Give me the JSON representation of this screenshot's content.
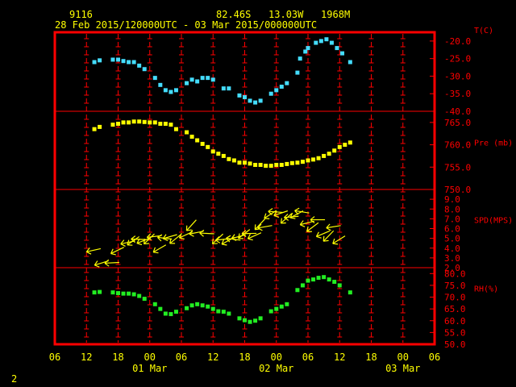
{
  "header": {
    "station": "9116",
    "location": "82.46S   13.03W   1968M",
    "period": "28 Feb 2015/120000UTC - 03 Mar 2015/000000UTC"
  },
  "footer": {
    "page": "2"
  },
  "colors": {
    "background": "#000000",
    "frame": "#ff0000",
    "text": "#ffff00",
    "temperature": "#44ddff",
    "pressure": "#ffff00",
    "wind": "#ffff00",
    "humidity": "#22ee22"
  },
  "chart_data": {
    "type": "scatter",
    "x_axis": {
      "ticks": [
        "06",
        "12",
        "18",
        "00",
        "06",
        "12",
        "18",
        "00",
        "06",
        "12",
        "18",
        "00",
        "06"
      ],
      "date_labels": [
        {
          "at": "00",
          "text": "01 Mar"
        },
        {
          "at": "00",
          "text": "02 Mar"
        },
        {
          "at": "00",
          "text": "03 Mar"
        }
      ],
      "unit": "hours since 28 Feb 2015 06 UTC",
      "range": [
        0,
        72
      ]
    },
    "panels": [
      {
        "name": "temperature",
        "label": "T(C)",
        "ylim": [
          -40,
          -17.5
        ],
        "yticks": [
          "-20.0",
          "-25.0",
          "-30.0",
          "-35.0",
          "-40.0"
        ],
        "series": [
          [
            7.5,
            -26
          ],
          [
            8.5,
            -25.5
          ],
          [
            11,
            -25.3
          ],
          [
            12,
            -25.3
          ],
          [
            13,
            -25.7
          ],
          [
            14,
            -26
          ],
          [
            15,
            -26
          ],
          [
            16,
            -27
          ],
          [
            17,
            -28
          ],
          [
            19,
            -30.5
          ],
          [
            20,
            -32.5
          ],
          [
            21,
            -34
          ],
          [
            22,
            -34.5
          ],
          [
            23,
            -34
          ],
          [
            25,
            -32
          ],
          [
            26,
            -31
          ],
          [
            27,
            -31.5
          ],
          [
            28,
            -30.5
          ],
          [
            29,
            -30.5
          ],
          [
            30,
            -31
          ],
          [
            32,
            -33.5
          ],
          [
            33,
            -33.5
          ],
          [
            35,
            -35.5
          ],
          [
            36,
            -36
          ],
          [
            37,
            -37
          ],
          [
            38,
            -37.5
          ],
          [
            39,
            -37
          ],
          [
            41,
            -35
          ],
          [
            42,
            -34
          ],
          [
            43,
            -33
          ],
          [
            44,
            -32
          ],
          [
            46,
            -29
          ],
          [
            46.5,
            -25
          ],
          [
            47.5,
            -23
          ],
          [
            48,
            -22
          ],
          [
            49.5,
            -20.5
          ],
          [
            50.5,
            -20
          ],
          [
            51.5,
            -19.5
          ],
          [
            52.5,
            -20.5
          ],
          [
            53.5,
            -22
          ],
          [
            54.5,
            -23.5
          ],
          [
            56,
            -26
          ]
        ]
      },
      {
        "name": "pressure",
        "label": "Pre (mb)",
        "ylim": [
          750,
          767.5
        ],
        "yticks": [
          "765.0",
          "760.0",
          "755.0",
          "750.0"
        ],
        "series": [
          [
            7.5,
            763.5
          ],
          [
            8.5,
            764
          ],
          [
            11,
            764.5
          ],
          [
            12,
            764.7
          ],
          [
            13,
            765
          ],
          [
            14,
            765
          ],
          [
            15,
            765.2
          ],
          [
            16,
            765.2
          ],
          [
            17,
            765.1
          ],
          [
            18,
            765
          ],
          [
            19,
            765
          ],
          [
            20,
            764.7
          ],
          [
            21,
            764.7
          ],
          [
            22,
            764.5
          ],
          [
            23,
            763.5
          ],
          [
            25,
            762.8
          ],
          [
            26,
            761.8
          ],
          [
            27,
            761
          ],
          [
            28,
            760.2
          ],
          [
            29,
            759.5
          ],
          [
            30,
            758.5
          ],
          [
            31,
            758
          ],
          [
            32,
            757.5
          ],
          [
            33,
            756.8
          ],
          [
            34,
            756.5
          ],
          [
            35,
            756
          ],
          [
            36,
            756
          ],
          [
            37,
            755.8
          ],
          [
            38,
            755.5
          ],
          [
            39,
            755.5
          ],
          [
            40,
            755.3
          ],
          [
            41,
            755.3
          ],
          [
            42,
            755.5
          ],
          [
            43,
            755.5
          ],
          [
            44,
            755.7
          ],
          [
            45,
            755.9
          ],
          [
            46,
            756
          ],
          [
            47,
            756.2
          ],
          [
            48,
            756.5
          ],
          [
            49,
            756.7
          ],
          [
            50,
            757
          ],
          [
            51,
            757.5
          ],
          [
            52,
            758
          ],
          [
            53,
            758.7
          ],
          [
            54,
            759.5
          ],
          [
            55,
            760
          ],
          [
            56,
            760.5
          ]
        ]
      },
      {
        "name": "wind",
        "label": "SPD(MPS)",
        "ylim": [
          2,
          10
        ],
        "yticks": [
          "9.0",
          "8.0",
          "7.0",
          "6.0",
          "5.0",
          "4.0",
          "3.0",
          "2.0"
        ],
        "series": [
          [
            7.5,
            3.8
          ],
          [
            9,
            2.5
          ],
          [
            11,
            2.5
          ],
          [
            12,
            3.8
          ],
          [
            14,
            4.6
          ],
          [
            15,
            4.8
          ],
          [
            16,
            4.9
          ],
          [
            17,
            4.8
          ],
          [
            18,
            5
          ],
          [
            19,
            5.2
          ],
          [
            20,
            4
          ],
          [
            21,
            5
          ],
          [
            22,
            5.2
          ],
          [
            23,
            5
          ],
          [
            25,
            5.4
          ],
          [
            26,
            6.4
          ],
          [
            27,
            5.6
          ],
          [
            29,
            5.5
          ],
          [
            31,
            5
          ],
          [
            32,
            4.9
          ],
          [
            33,
            4.8
          ],
          [
            34,
            4.9
          ],
          [
            35,
            5.2
          ],
          [
            36,
            5.5
          ],
          [
            37,
            5.5
          ],
          [
            38,
            5.3
          ],
          [
            39,
            6.5
          ],
          [
            40,
            6.2
          ],
          [
            41,
            7.5
          ],
          [
            42,
            7.7
          ],
          [
            43,
            7.6
          ],
          [
            44,
            7.1
          ],
          [
            45,
            7.2
          ],
          [
            46,
            7.5
          ],
          [
            47,
            7.7
          ],
          [
            48,
            6.6
          ],
          [
            49,
            6.2
          ],
          [
            50,
            6.9
          ],
          [
            51,
            5.5
          ],
          [
            52,
            5.3
          ],
          [
            53,
            6.2
          ],
          [
            54,
            4.9
          ]
        ]
      },
      {
        "name": "humidity",
        "label": "RH(%)",
        "ylim": [
          50,
          82.5
        ],
        "yticks": [
          "80.0",
          "75.0",
          "70.0",
          "65.0",
          "60.0",
          "55.0",
          "50.0"
        ],
        "series": [
          [
            7.5,
            72
          ],
          [
            8.5,
            72.2
          ],
          [
            11,
            72
          ],
          [
            12,
            71.7
          ],
          [
            13,
            71.5
          ],
          [
            14,
            71.5
          ],
          [
            15,
            71.2
          ],
          [
            16,
            70.5
          ],
          [
            17,
            69.3
          ],
          [
            19,
            67
          ],
          [
            20,
            65
          ],
          [
            21,
            63
          ],
          [
            22,
            62.8
          ],
          [
            23,
            63.8
          ],
          [
            25,
            65.3
          ],
          [
            26,
            66.5
          ],
          [
            27,
            67
          ],
          [
            28,
            66.5
          ],
          [
            29,
            66
          ],
          [
            30,
            65
          ],
          [
            31,
            64
          ],
          [
            32,
            63.8
          ],
          [
            33,
            63
          ],
          [
            35,
            61
          ],
          [
            36,
            60.2
          ],
          [
            37,
            59.5
          ],
          [
            38,
            60
          ],
          [
            39,
            61
          ],
          [
            41,
            64
          ],
          [
            42,
            65
          ],
          [
            43,
            66
          ],
          [
            44,
            67
          ],
          [
            46,
            73
          ],
          [
            47,
            75
          ],
          [
            48,
            77
          ],
          [
            49,
            77.5
          ],
          [
            50,
            78.2
          ],
          [
            51,
            78.5
          ],
          [
            52,
            77.5
          ],
          [
            53,
            76.5
          ],
          [
            54,
            75
          ],
          [
            56,
            72
          ]
        ]
      }
    ]
  }
}
